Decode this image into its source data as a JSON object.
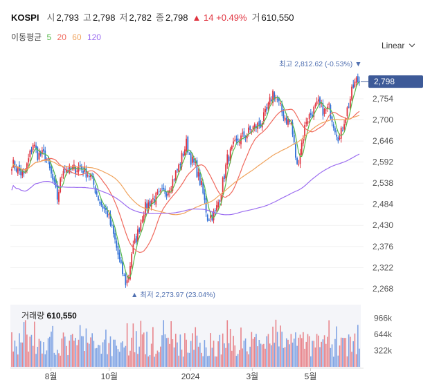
{
  "quote": {
    "symbol": "KOSPI",
    "open_label": "시",
    "open": "2,793",
    "high_label": "고",
    "high": "2,798",
    "low_label": "저",
    "low": "2,782",
    "close_label": "종",
    "close": "2,798",
    "change": "14",
    "change_pct": "+0.49%",
    "volume_label": "거",
    "volume": "610,550"
  },
  "ma_legend": {
    "label": "이동평균",
    "periods": [
      "5",
      "20",
      "60",
      "120"
    ]
  },
  "scale_button": "Linear",
  "colors": {
    "up": "#e0333f",
    "down": "#2f6fd6",
    "ma5": "#55b949",
    "ma20": "#f0685c",
    "ma60": "#f0a35c",
    "ma120": "#9b6cf0",
    "price_tag": "#3d5a98",
    "annotation": "#4f6fb0"
  },
  "chart_data": {
    "type": "candlestick",
    "y_ticks": [
      "2,268",
      "2,322",
      "2,376",
      "2,430",
      "2,484",
      "2,538",
      "2,592",
      "2,646",
      "2,700",
      "2,754"
    ],
    "ylim": [
      2243,
      2830
    ],
    "x_ticks": [
      "8월",
      "10월",
      "2024",
      "3월",
      "5월"
    ],
    "current_price": "2,798",
    "annotations": {
      "high_text": "최고 2,812.62 (-0.53%)",
      "low_text": "최저 2,273.97 (23.04%)"
    },
    "overlays": [
      "MA5",
      "MA20",
      "MA60",
      "MA120"
    ],
    "volume": {
      "title": "거래량",
      "value": "610,550",
      "ticks": [
        "966k",
        "644k",
        "322k"
      ],
      "ylim": [
        0,
        1100000
      ]
    }
  }
}
